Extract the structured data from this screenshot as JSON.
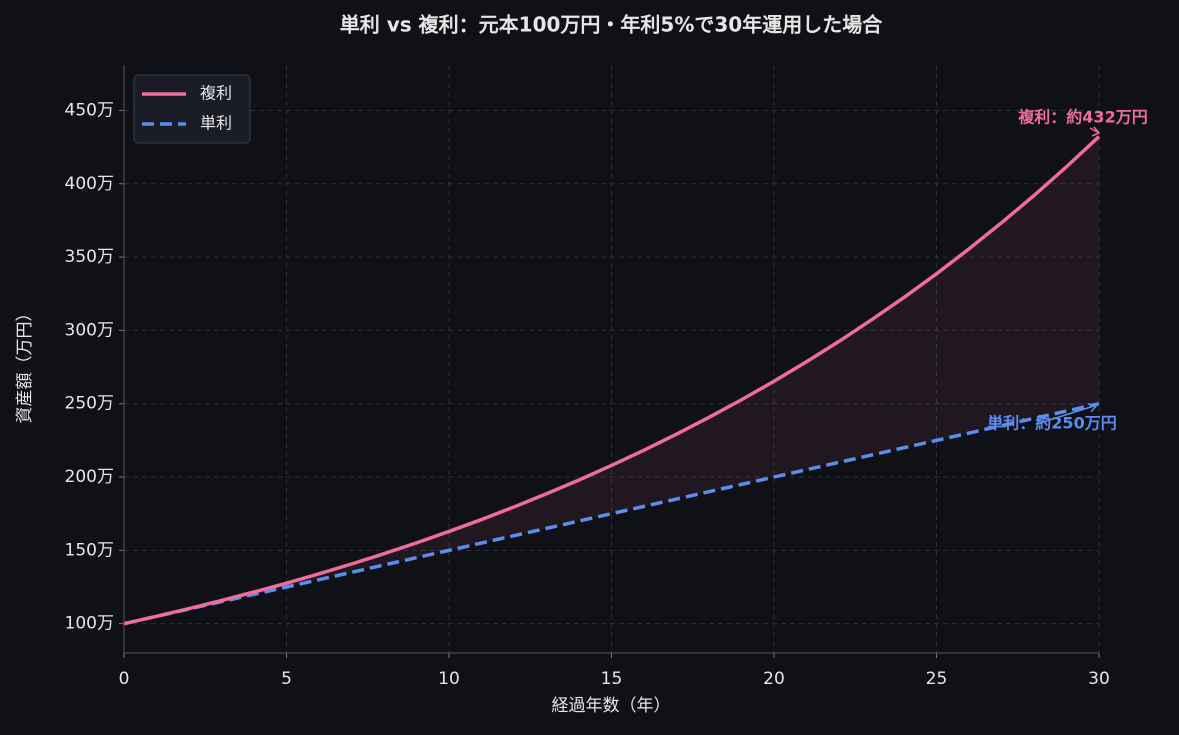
{
  "chart_data": {
    "type": "line",
    "title": "単利 vs 複利：元本100万円・年利5%で30年運用した場合",
    "x_label": "経過年数（年）",
    "y_label": "資産額（万円）",
    "x": [
      0,
      1,
      2,
      3,
      4,
      5,
      6,
      7,
      8,
      9,
      10,
      11,
      12,
      13,
      14,
      15,
      16,
      17,
      18,
      19,
      20,
      21,
      22,
      23,
      24,
      25,
      26,
      27,
      28,
      29,
      30
    ],
    "series": [
      {
        "name": "複利",
        "color": "#f06c9b",
        "style": "solid",
        "values": [
          100,
          105,
          110.3,
          115.8,
          121.6,
          127.6,
          134,
          140.7,
          147.7,
          155.1,
          162.9,
          171,
          179.6,
          188.6,
          198,
          207.9,
          218.3,
          229.2,
          240.7,
          252.7,
          265.3,
          278.6,
          292.5,
          307.2,
          322.5,
          338.6,
          355.6,
          373.4,
          392,
          411.6,
          432.2
        ]
      },
      {
        "name": "単利",
        "color": "#5b8def",
        "style": "dashed",
        "values": [
          100,
          105,
          110,
          115,
          120,
          125,
          130,
          135,
          140,
          145,
          150,
          155,
          160,
          165,
          170,
          175,
          180,
          185,
          190,
          195,
          200,
          205,
          210,
          215,
          220,
          225,
          230,
          235,
          240,
          245,
          250
        ]
      }
    ],
    "xlim": [
      0,
      30
    ],
    "xticks": [
      0,
      5,
      10,
      15,
      20,
      25,
      30
    ],
    "ylim": [
      80,
      481
    ],
    "yticks": [
      {
        "value": 100,
        "label": "100万"
      },
      {
        "value": 150,
        "label": "150万"
      },
      {
        "value": 200,
        "label": "200万"
      },
      {
        "value": 250,
        "label": "250万"
      },
      {
        "value": 300,
        "label": "300万"
      },
      {
        "value": 350,
        "label": "350万"
      },
      {
        "value": 400,
        "label": "400万"
      },
      {
        "value": 450,
        "label": "450万"
      }
    ],
    "grid": true,
    "legend": "upper left",
    "annotations": [
      "複利：約432万円",
      "単利：約250万円"
    ]
  }
}
